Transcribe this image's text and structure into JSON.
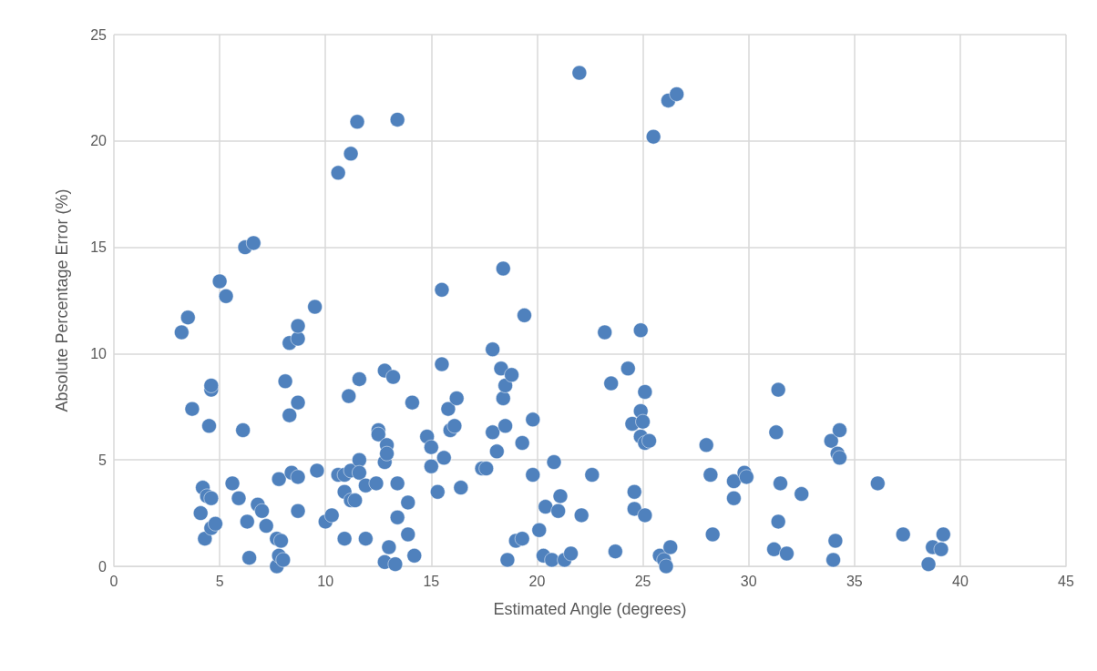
{
  "chart_data": {
    "type": "scatter",
    "xlabel": "Estimated Angle (degrees)",
    "ylabel": "Absolute Percentage Error (%)",
    "xlim": [
      0,
      45
    ],
    "xticks": [
      0,
      5,
      10,
      15,
      20,
      25,
      30,
      35,
      40,
      45
    ],
    "ylim": [
      0,
      25
    ],
    "yticks": [
      0,
      5,
      10,
      15,
      20,
      25
    ],
    "grid": true,
    "marker": "circle",
    "series": [
      {
        "color": "#4f81bd",
        "x": [
          3.2,
          3.5,
          3.7,
          4.2,
          4.1,
          4.4,
          4.3,
          4.6,
          4.6,
          4.6,
          4.5,
          4.6,
          4.8,
          5.0,
          5.3,
          5.6,
          5.9,
          6.1,
          6.2,
          6.6,
          6.3,
          6.4,
          6.8,
          7.0,
          7.2,
          7.8,
          7.7,
          7.7,
          7.8,
          7.9,
          8.0,
          8.1,
          8.3,
          8.3,
          8.4,
          8.7,
          8.7,
          8.7,
          8.7,
          8.7,
          9.5,
          9.6,
          10.0,
          10.3,
          10.6,
          10.6,
          10.9,
          10.9,
          10.9,
          11.2,
          11.1,
          11.2,
          11.2,
          11.4,
          11.5,
          11.6,
          11.6,
          11.6,
          11.9,
          11.9,
          12.5,
          12.5,
          12.4,
          12.8,
          12.8,
          12.8,
          12.9,
          12.9,
          13.0,
          13.2,
          13.3,
          13.4,
          13.4,
          13.4,
          13.9,
          13.9,
          14.1,
          14.2,
          14.8,
          15.0,
          15.0,
          15.3,
          15.5,
          15.5,
          15.6,
          15.8,
          15.9,
          16.1,
          16.2,
          16.4,
          17.4,
          17.6,
          17.9,
          17.9,
          18.1,
          18.3,
          18.4,
          18.4,
          18.5,
          18.5,
          18.6,
          18.8,
          19.0,
          19.3,
          19.3,
          19.4,
          19.8,
          19.8,
          20.1,
          20.3,
          20.4,
          20.7,
          20.8,
          21.0,
          21.1,
          21.3,
          21.6,
          22.0,
          22.1,
          22.6,
          23.2,
          23.5,
          23.7,
          24.3,
          24.5,
          24.6,
          24.6,
          24.9,
          24.9,
          24.9,
          25.0,
          25.1,
          25.1,
          25.1,
          25.3,
          25.5,
          25.8,
          26.0,
          26.1,
          26.2,
          26.6,
          26.3,
          28.0,
          28.2,
          28.3,
          29.3,
          29.3,
          29.8,
          29.9,
          31.2,
          31.3,
          31.4,
          31.4,
          31.5,
          31.8,
          32.5,
          33.9,
          34.0,
          34.1,
          34.2,
          34.3,
          34.3,
          36.1,
          37.3,
          38.5,
          38.7,
          39.1,
          39.2
        ],
        "values": [
          11.0,
          11.7,
          7.4,
          3.7,
          2.5,
          3.3,
          1.3,
          3.2,
          8.3,
          8.5,
          6.6,
          1.8,
          2.0,
          13.4,
          12.7,
          3.9,
          3.2,
          6.4,
          15.0,
          15.2,
          2.1,
          0.4,
          2.9,
          2.6,
          1.9,
          4.1,
          1.3,
          0.0,
          0.5,
          1.2,
          0.3,
          8.7,
          7.1,
          10.5,
          4.4,
          10.7,
          11.3,
          7.7,
          4.2,
          2.6,
          12.2,
          4.5,
          2.1,
          2.4,
          18.5,
          4.3,
          1.3,
          3.5,
          4.3,
          4.5,
          8.0,
          19.4,
          3.1,
          3.1,
          20.9,
          5.0,
          8.8,
          4.4,
          3.8,
          1.3,
          6.4,
          6.2,
          3.9,
          4.9,
          0.2,
          9.2,
          5.7,
          5.3,
          0.9,
          8.9,
          0.1,
          21.0,
          3.9,
          2.3,
          3.0,
          1.5,
          7.7,
          0.5,
          6.1,
          5.6,
          4.7,
          3.5,
          9.5,
          13.0,
          5.1,
          7.4,
          6.4,
          6.6,
          7.9,
          3.7,
          4.6,
          4.6,
          10.2,
          6.3,
          5.4,
          9.3,
          14.0,
          7.9,
          8.5,
          6.6,
          0.3,
          9.0,
          1.2,
          1.3,
          5.8,
          11.8,
          6.9,
          4.3,
          1.7,
          0.5,
          2.8,
          0.3,
          4.9,
          2.6,
          3.3,
          0.3,
          0.6,
          23.2,
          2.4,
          4.3,
          11.0,
          8.6,
          0.7,
          9.3,
          6.7,
          2.7,
          3.5,
          11.1,
          7.3,
          6.1,
          6.8,
          2.4,
          8.2,
          5.8,
          5.9,
          20.2,
          0.5,
          0.3,
          0.0,
          21.9,
          22.2,
          0.9,
          5.7,
          4.3,
          1.5,
          4.0,
          3.2,
          4.4,
          4.2,
          0.8,
          6.3,
          8.3,
          2.1,
          3.9,
          0.6,
          3.4,
          5.9,
          0.3,
          1.2,
          5.3,
          5.1,
          6.4,
          3.9,
          1.5,
          0.1,
          0.9,
          0.8,
          1.5
        ]
      }
    ]
  }
}
